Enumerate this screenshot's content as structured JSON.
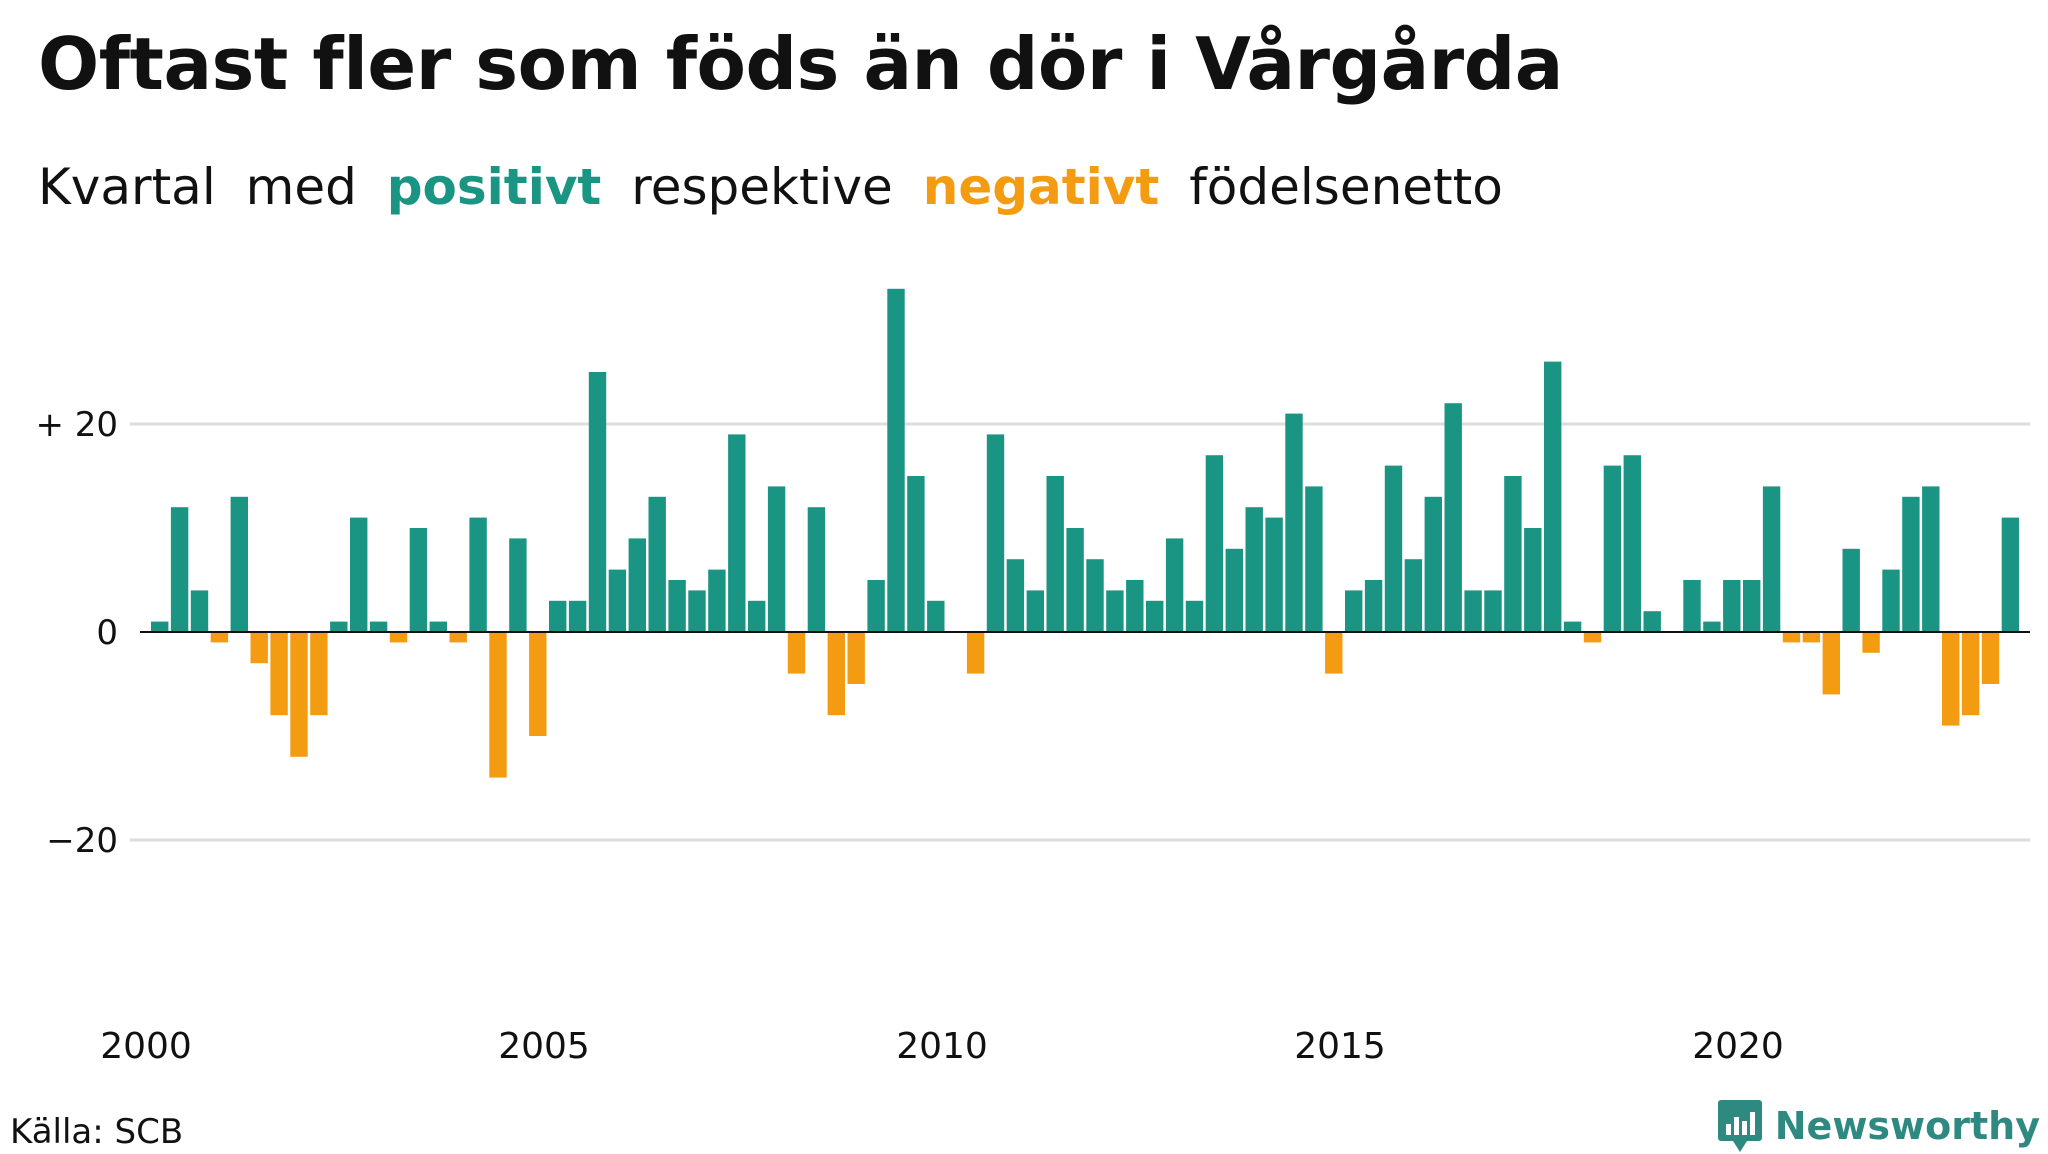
{
  "title": "Oftast fler som föds än dör i Vårgårda",
  "subtitle": {
    "w1": "Kvartal",
    "w2": "med",
    "positive": "positivt",
    "w3": "respektive",
    "negative": "negativt",
    "w4": "födelsenetto"
  },
  "source": "Källa: SCB",
  "brand": "Newsworthy",
  "colors": {
    "positive": "#1a9583",
    "negative": "#f39c12",
    "brand": "#2e8a80",
    "grid": "#dddddd"
  },
  "chart_data": {
    "type": "bar",
    "x_start": "2000 Q1",
    "frequency": "quarter",
    "xticks": [
      "2000",
      "2005",
      "2010",
      "2015",
      "2020"
    ],
    "yticks": [
      {
        "value": 20,
        "label": "+ 20"
      },
      {
        "value": 0,
        "label": "0"
      },
      {
        "value": -20,
        "label": "−20"
      }
    ],
    "ylim": [
      -37,
      37
    ],
    "grid": true,
    "values": [
      1,
      12,
      4,
      -1,
      13,
      -3,
      -8,
      -12,
      -8,
      1,
      11,
      1,
      -1,
      10,
      1,
      -1,
      11,
      -14,
      9,
      -10,
      3,
      3,
      25,
      6,
      9,
      13,
      5,
      4,
      6,
      19,
      3,
      14,
      -4,
      12,
      -8,
      -5,
      5,
      33,
      15,
      3,
      0,
      -4,
      19,
      7,
      4,
      15,
      10,
      7,
      4,
      5,
      3,
      9,
      3,
      17,
      8,
      12,
      11,
      21,
      14,
      -4,
      4,
      5,
      16,
      7,
      13,
      22,
      4,
      4,
      15,
      10,
      26,
      1,
      -1,
      16,
      17,
      2,
      0,
      5,
      1,
      5,
      5,
      14,
      -1,
      -1,
      -6,
      8,
      -2,
      6,
      13,
      14,
      -9,
      -8,
      -5,
      11
    ]
  }
}
